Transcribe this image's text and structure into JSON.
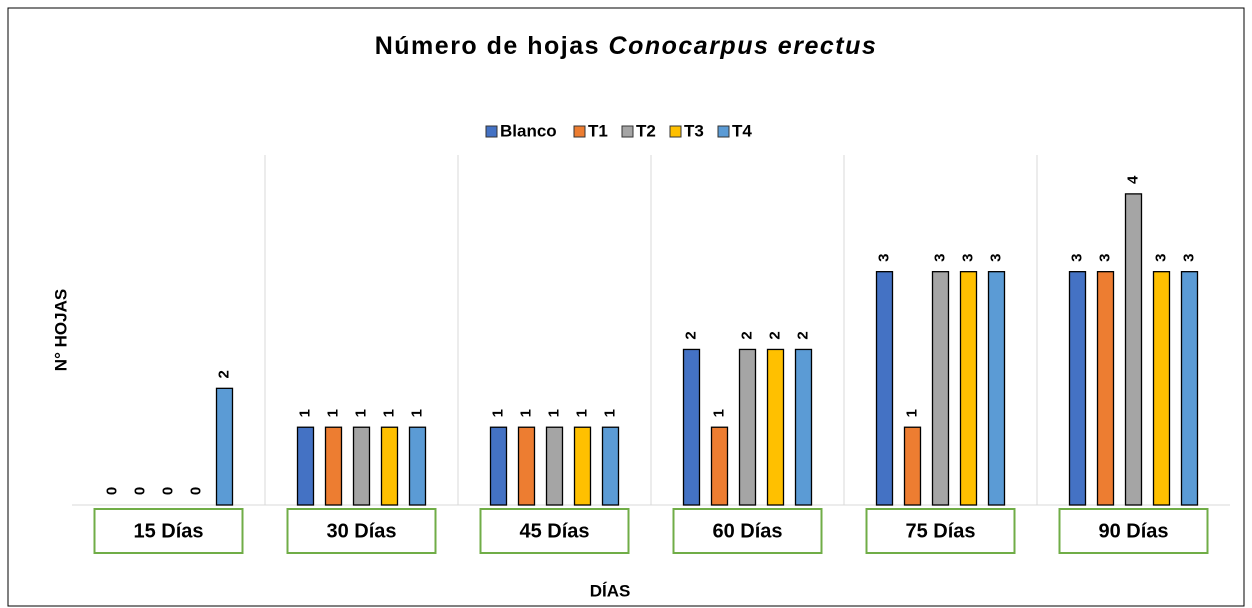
{
  "chart_data": {
    "type": "bar",
    "title": {
      "text": "Número de hojas",
      "species": "Conocarpus erectus"
    },
    "x_label": "DÍAS",
    "y_label": "N° HOJAS",
    "categories": [
      "15 Días",
      "30 Días",
      "45 Días",
      "60 Días",
      "75 Días",
      "90 Días"
    ],
    "series": [
      {
        "name": "Blanco",
        "color": "#4472c4",
        "values": [
          0,
          1,
          1,
          2,
          3,
          3
        ]
      },
      {
        "name": "T1",
        "color": "#ed7d31",
        "values": [
          0,
          1,
          1,
          1,
          1,
          3
        ]
      },
      {
        "name": "T2",
        "color": "#a5a5a5",
        "values": [
          0,
          1,
          1,
          2,
          3,
          4
        ]
      },
      {
        "name": "T3",
        "color": "#ffc000",
        "values": [
          0,
          1,
          1,
          2,
          3,
          3
        ]
      },
      {
        "name": "T4",
        "color": "#5b9bd5",
        "values": [
          1.5,
          1,
          1,
          2,
          3,
          3
        ],
        "value_labels": [
          "2",
          "1",
          "1",
          "2",
          "3",
          "3"
        ]
      }
    ],
    "ylim": [
      0,
      4.5
    ],
    "legend": "top"
  }
}
